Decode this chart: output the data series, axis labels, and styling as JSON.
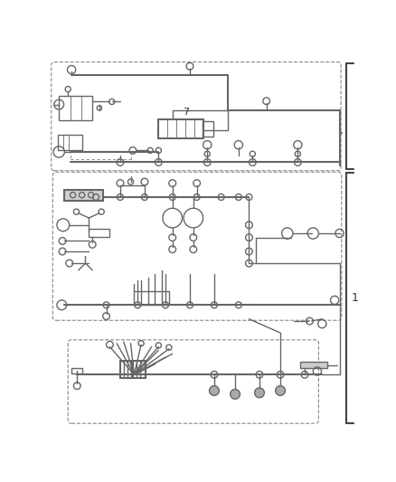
{
  "bg_color": "#ffffff",
  "lc": "#666666",
  "dc": "#888888",
  "bc": "#444444",
  "lw": 1.0,
  "lw2": 1.5,
  "lw3": 0.6
}
